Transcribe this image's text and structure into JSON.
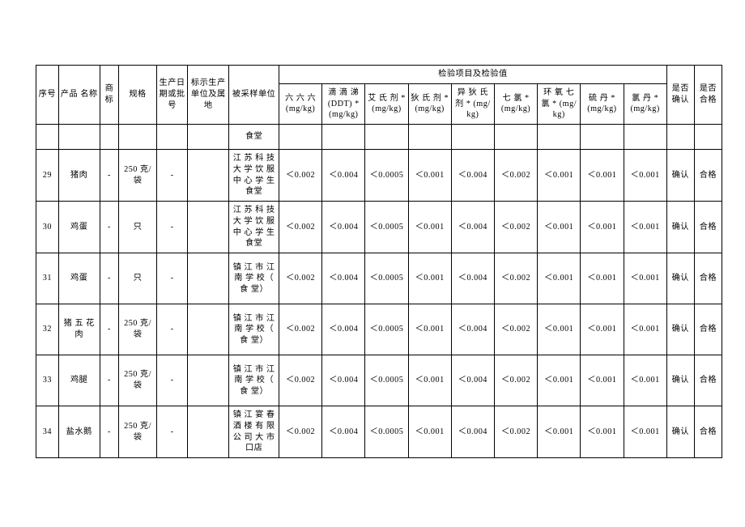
{
  "headers": {
    "seq": "序号",
    "product": "产品 名称",
    "trademark": "商标",
    "spec": "规格",
    "date": "生产日期或批号",
    "origin": "标示生产单位及属地",
    "sampled": "被采样单位",
    "tests_group": "检验项目及检验值",
    "confirm": "是否确认",
    "qualified": "是否合格",
    "tests": [
      "六 六 六 (mg/kg)",
      "滴 滴 涕(DDT) * (mg/kg)",
      "艾 氏 剂 *   (mg/kg)",
      "狄 氏 剂 *   (mg/kg)",
      "异 狄 氏 剂    * (mg/kg)",
      "七 氯  * (mg/kg)",
      "环 氧 七 氯     * (mg/kg)",
      "硫 丹  * (mg/kg)",
      "氯 丹  * (mg/kg)"
    ]
  },
  "partial_first_row": {
    "sampled": "食堂"
  },
  "test_values_common": [
    "＜0.002",
    "＜0.004",
    "＜0.0005",
    "＜0.001",
    "＜0.004",
    "＜0.002",
    "＜0.001",
    "＜0.001",
    "＜0.001"
  ],
  "rows": [
    {
      "seq": "29",
      "product": "猪肉",
      "trademark": "-",
      "spec": "250 克/袋",
      "date": "-",
      "origin": "",
      "sampled": "江 苏 科 技 大 学 饮 服 中 心 学 生 食堂",
      "confirm": "确认",
      "qualified": "合格"
    },
    {
      "seq": "30",
      "product": "鸡蛋",
      "trademark": "-",
      "spec": "只",
      "date": "-",
      "origin": "",
      "sampled": "江 苏 科 技 大 学 饮 服 中 心 学 生 食堂",
      "confirm": "确认",
      "qualified": "合格"
    },
    {
      "seq": "31",
      "product": "鸡蛋",
      "trademark": "-",
      "spec": "只",
      "date": "-",
      "origin": "",
      "sampled": "镇 江 市 江 南 学 校（ 食 堂）",
      "confirm": "确认",
      "qualified": "合格"
    },
    {
      "seq": "32",
      "product": "猪 五 花 肉",
      "trademark": "-",
      "spec": "250 克/袋",
      "date": "-",
      "origin": "",
      "sampled": "镇 江 市 江 南 学 校（ 食 堂）",
      "confirm": "确认",
      "qualified": "合格"
    },
    {
      "seq": "33",
      "product": "鸡腿",
      "trademark": "-",
      "spec": "250 克/袋",
      "date": "-",
      "origin": "",
      "sampled": "镇 江 市 江 南 学 校（ 食 堂）",
      "confirm": "确认",
      "qualified": "合格"
    },
    {
      "seq": "34",
      "product": "盐水鹅",
      "trademark": "-",
      "spec": "250 克/袋",
      "date": "-",
      "origin": "",
      "sampled": "镇 江 宴 春 酒 楼 有 限 公 司 大 市 口店",
      "confirm": "确认",
      "qualified": "合格"
    }
  ]
}
